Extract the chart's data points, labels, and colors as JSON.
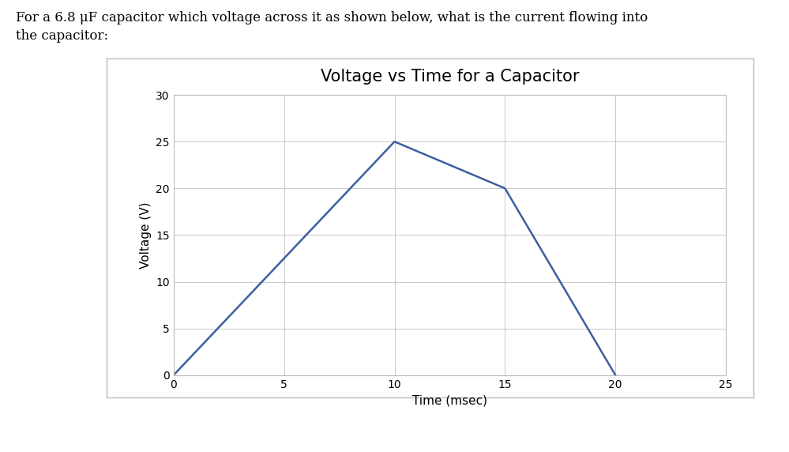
{
  "title": "Voltage vs Time for a Capacitor",
  "xlabel": "Time (msec)",
  "ylabel": "Voltage (V)",
  "x_data": [
    0,
    10,
    15,
    20
  ],
  "y_data": [
    0,
    25,
    20,
    0
  ],
  "line_color": "#3C5FA0",
  "line_width": 1.8,
  "xlim": [
    0,
    25
  ],
  "ylim": [
    0,
    30
  ],
  "xticks": [
    0,
    5,
    10,
    15,
    20,
    25
  ],
  "yticks": [
    0,
    5,
    10,
    15,
    20,
    25,
    30
  ],
  "grid_color": "#C8C8C8",
  "grid_linewidth": 0.7,
  "background_color": "#FFFFFF",
  "plot_bg_color": "#FFFFFF",
  "title_fontsize": 15,
  "label_fontsize": 11,
  "tick_fontsize": 10,
  "outer_box_color": "#BBBBBB",
  "header_text_line1": "For a 6.8 μF capacitor which voltage across it as shown below, what is the current flowing into",
  "header_text_line2": "the capacitor:",
  "header_fontsize": 12
}
